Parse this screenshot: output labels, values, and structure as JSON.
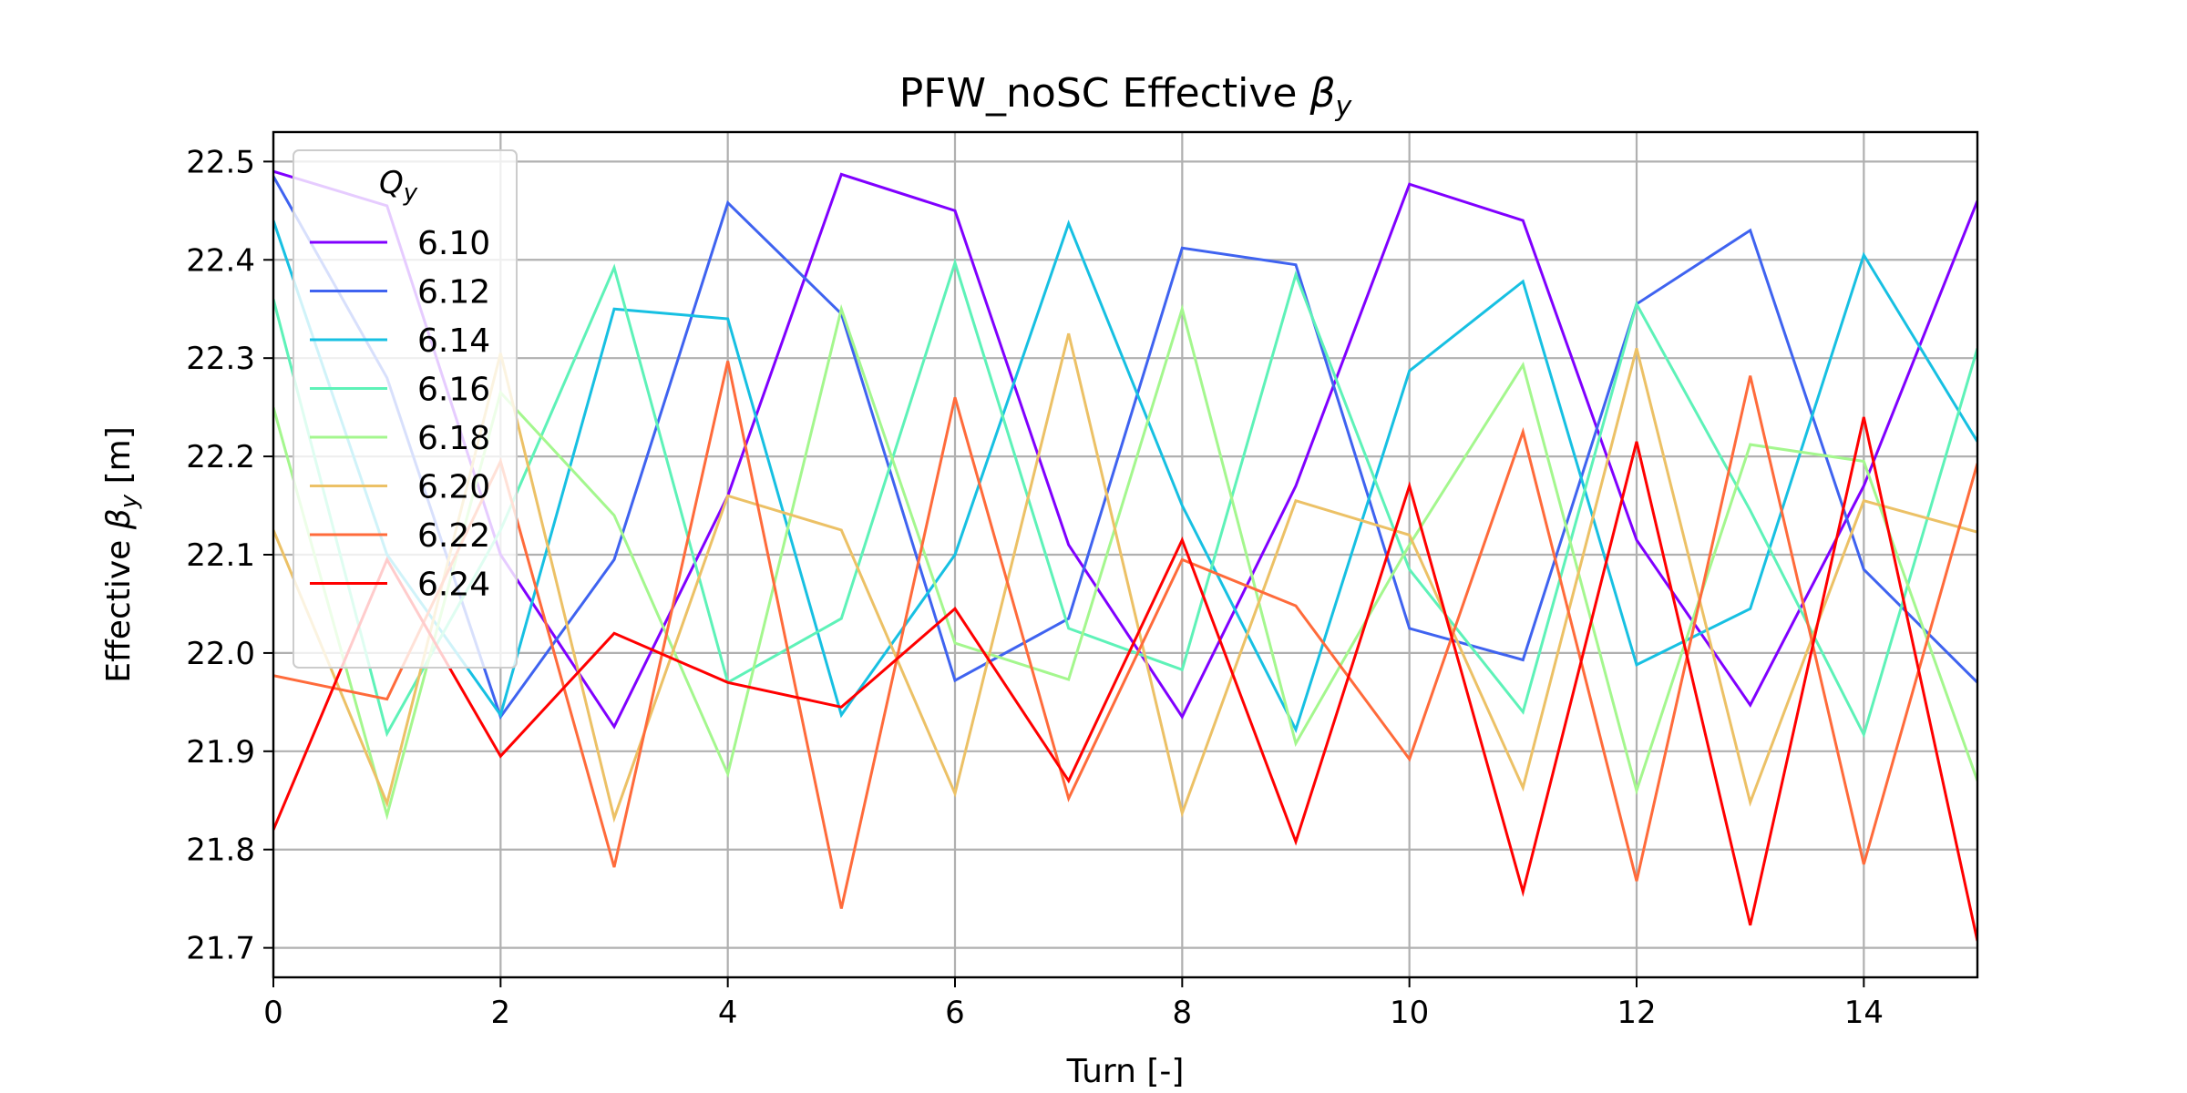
{
  "chart_data": {
    "type": "line",
    "title": {
      "text": "PFW_noSC Effective ",
      "symbol": "β",
      "subscript": "y"
    },
    "xlabel": "Turn [-]",
    "ylabel": {
      "text": "Effective ",
      "symbol": "β",
      "subscript": "y",
      "suffix": " [m]"
    },
    "xlim": [
      0,
      15
    ],
    "ylim": [
      21.67,
      22.53
    ],
    "xticks": [
      0,
      2,
      4,
      6,
      8,
      10,
      12,
      14
    ],
    "yticks": [
      21.7,
      21.8,
      21.9,
      22.0,
      22.1,
      22.2,
      22.3,
      22.4,
      22.5
    ],
    "grid": true,
    "legend": {
      "position": "upper-left",
      "title_symbol": "Q",
      "title_subscript": "y"
    },
    "x": [
      0,
      1,
      2,
      3,
      4,
      5,
      6,
      7,
      8,
      9,
      10,
      11,
      12,
      13,
      14,
      15
    ],
    "series": [
      {
        "name": "6.10",
        "color": "#8000ff",
        "values": [
          22.49,
          22.455,
          22.1,
          21.925,
          22.16,
          22.487,
          22.45,
          22.11,
          21.935,
          22.17,
          22.477,
          22.44,
          22.115,
          21.947,
          22.17,
          22.46
        ]
      },
      {
        "name": "6.12",
        "color": "#3f63f0",
        "values": [
          22.485,
          22.28,
          21.935,
          22.095,
          22.458,
          22.345,
          21.972,
          22.035,
          22.412,
          22.395,
          22.025,
          21.993,
          22.355,
          22.43,
          22.085,
          21.97
        ]
      },
      {
        "name": "6.14",
        "color": "#17c0e2",
        "values": [
          22.44,
          22.1,
          21.937,
          22.35,
          22.34,
          21.937,
          22.1,
          22.437,
          22.15,
          21.922,
          22.287,
          22.378,
          21.988,
          22.045,
          22.405,
          22.215
        ]
      },
      {
        "name": "6.16",
        "color": "#5ef2b8",
        "values": [
          22.36,
          21.918,
          22.125,
          22.392,
          21.97,
          22.035,
          22.397,
          22.025,
          21.983,
          22.385,
          22.085,
          21.94,
          22.355,
          22.145,
          21.917,
          22.31
        ]
      },
      {
        "name": "6.18",
        "color": "#a4f78e",
        "values": [
          22.25,
          21.835,
          22.265,
          22.14,
          21.877,
          22.35,
          22.01,
          21.973,
          22.35,
          21.908,
          22.11,
          22.293,
          21.86,
          22.212,
          22.195,
          21.87
        ]
      },
      {
        "name": "6.20",
        "color": "#ecc166",
        "values": [
          22.125,
          21.847,
          22.305,
          21.832,
          22.16,
          22.125,
          21.857,
          22.325,
          21.837,
          22.155,
          22.12,
          21.863,
          22.31,
          21.848,
          22.155,
          22.123
        ]
      },
      {
        "name": "6.22",
        "color": "#ff6b3b",
        "values": [
          21.977,
          21.953,
          22.195,
          21.782,
          22.297,
          21.74,
          22.26,
          21.852,
          22.095,
          22.048,
          21.892,
          22.225,
          21.768,
          22.282,
          21.785,
          22.193
        ]
      },
      {
        "name": "6.24",
        "color": "#ff0000",
        "values": [
          21.82,
          22.095,
          21.895,
          22.02,
          21.97,
          21.945,
          22.045,
          21.87,
          22.115,
          21.808,
          22.17,
          21.757,
          22.215,
          21.723,
          22.24,
          21.707
        ]
      }
    ]
  }
}
